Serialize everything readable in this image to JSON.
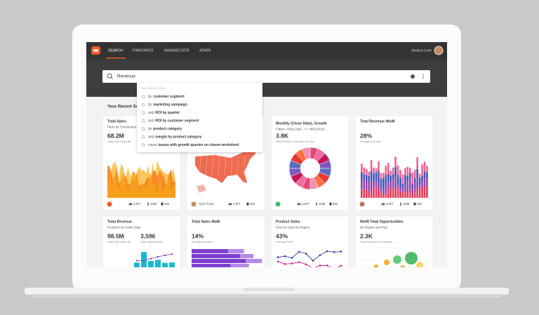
{
  "nav": {
    "items": [
      "SEARCH",
      "PINBOARDS",
      "MANAGE DATA",
      "ADMIN"
    ],
    "user": "Jessica Love"
  },
  "search": {
    "query": "Revenue",
    "suggestions_label": "SUGGESTIONS",
    "suggestions": [
      {
        "prefix": "by",
        "emphasis": "customer segment"
      },
      {
        "prefix": "by",
        "emphasis": "marketing campaign"
      },
      {
        "prefix": "and",
        "emphasis": "ROI by quarter"
      },
      {
        "prefix": "and",
        "emphasis": "ROI by customer segment"
      },
      {
        "prefix": "by",
        "emphasis": "product category"
      },
      {
        "prefix": "and",
        "emphasis": "margin by product category"
      },
      {
        "prefix": "count",
        "emphasis": "issues with growth queries on chasm worksheet"
      }
    ]
  },
  "section_title": "Your Recent Searches",
  "cards": [
    {
      "title": "Total Sales",
      "subtitle": "Parts by Transaction",
      "stats": [
        {
          "value": "68.2M",
          "label": "Total Deal Value ($)"
        }
      ],
      "footer": {
        "views": "4,877",
        "pins": "1436",
        "saves": "452"
      }
    },
    {
      "footer": {
        "author": "Tayla Tharp",
        "views": "4,877",
        "saves": "452"
      }
    },
    {
      "title": "Monthly (Close Date), Growth",
      "subtitle": "Filters: Close Date : >= 09/01/2016 ...",
      "stats": [
        {
          "value": "3.8K",
          "label": "Total Number of Ad-Hoc Queries"
        }
      ],
      "footer": {
        "views": "4,877",
        "pins": "1436",
        "saves": "452"
      }
    },
    {
      "title": "Total Revenue WoW",
      "stats": [
        {
          "value": "28%",
          "label": "Average Increase"
        }
      ],
      "footer": {
        "views": "4,877",
        "pins": "1436",
        "saves": "452"
      }
    },
    {
      "title": "Total Revenue",
      "subtitle": "Products by Order Date",
      "stats": [
        {
          "value": "98.5M",
          "label": "Total Deal Value ($)"
        },
        {
          "value": "3,596",
          "label": "Total Opportunities"
        }
      ]
    },
    {
      "title": "Total Sales MoM",
      "stats": [
        {
          "value": "14%",
          "label": "Average Increase"
        }
      ]
    },
    {
      "title": "Product Sales",
      "subtitle": "Past 90 Days by Region",
      "stats": [
        {
          "value": "43%",
          "label": "Average Profit"
        }
      ]
    },
    {
      "title": "WoW Total Opportunities",
      "subtitle": "By Region and Rep",
      "stats": [
        {
          "value": "2.3K",
          "label": "Total Number of Comments"
        }
      ]
    }
  ]
}
